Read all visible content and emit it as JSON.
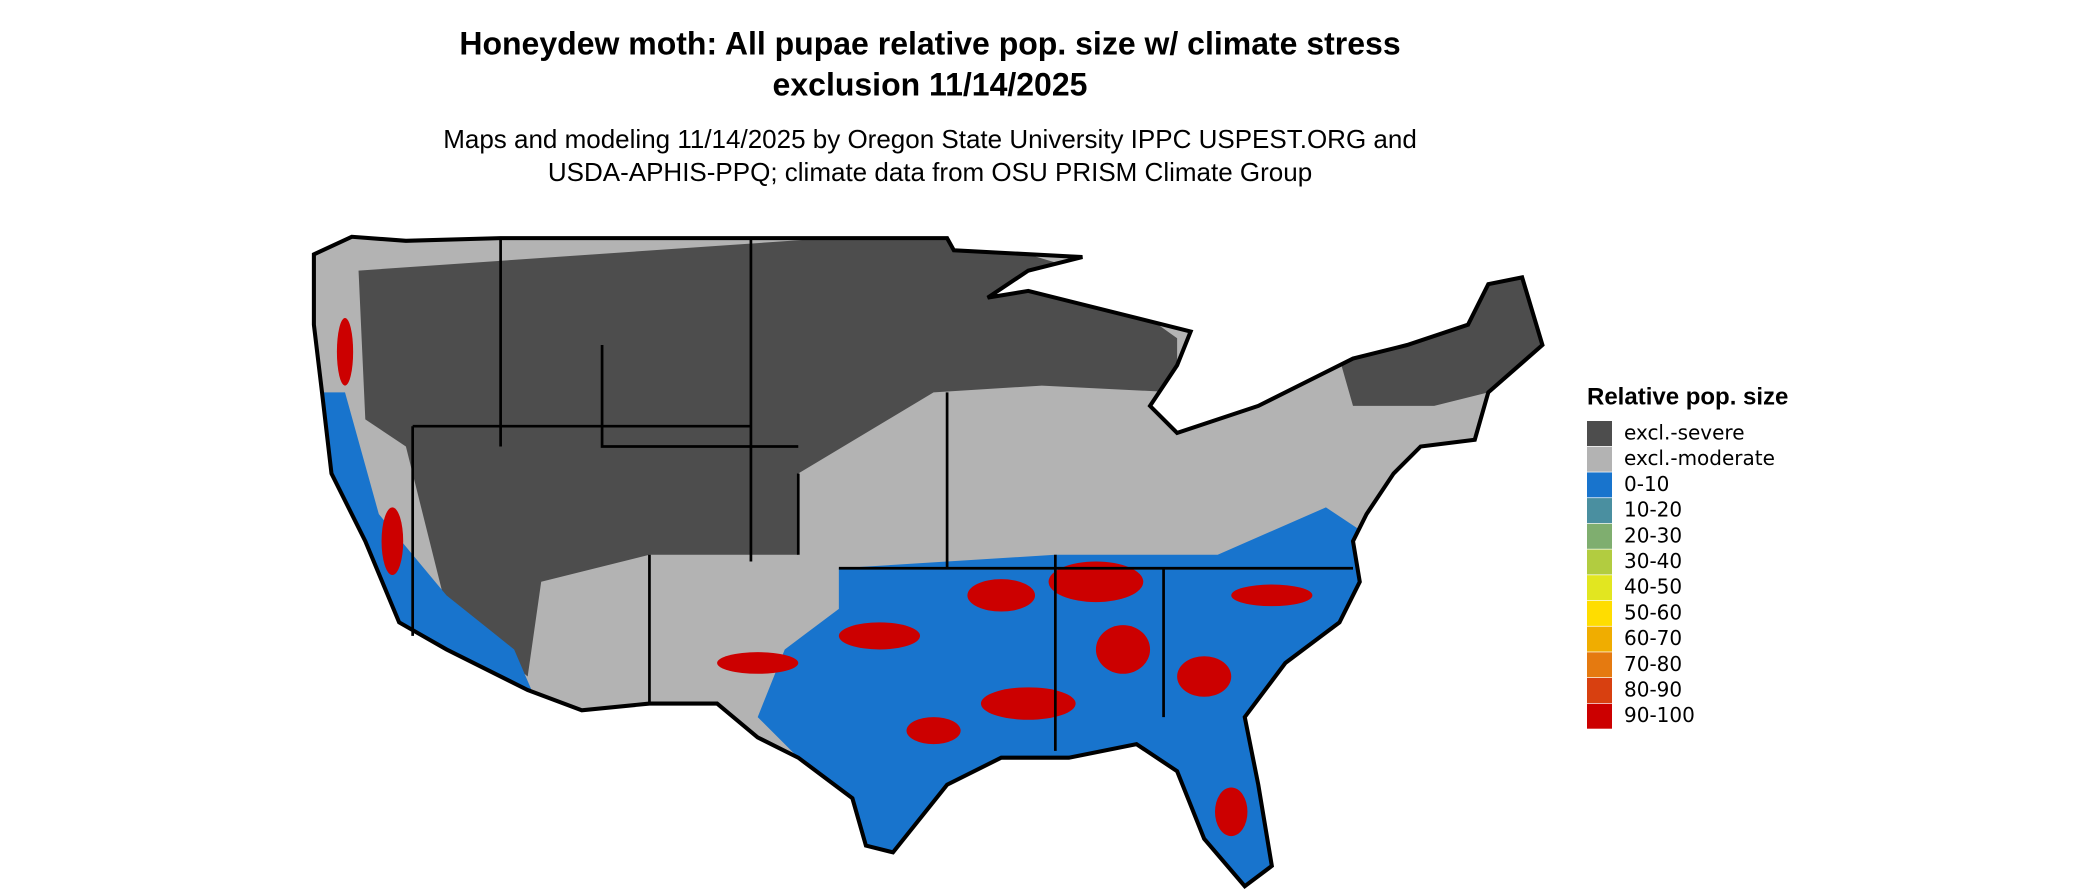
{
  "header": {
    "title": [
      "Honeydew moth: All pupae relative pop. size w/ climate stress",
      "exclusion 11/14/2025"
    ],
    "subtitle": [
      "Maps and modeling 11/14/2025 by Oregon State University IPPC USPEST.ORG and",
      "USDA-APHIS-PPQ; climate data from OSU PRISM Climate Group"
    ]
  },
  "legend": {
    "title": "Relative pop. size",
    "items": [
      {
        "label": "excl.-severe",
        "color": "#4d4d4d"
      },
      {
        "label": "excl.-moderate",
        "color": "#b3b3b3"
      },
      {
        "label": "0-10",
        "color": "#1874cd"
      },
      {
        "label": "10-20",
        "color": "#4a8fa0"
      },
      {
        "label": "20-30",
        "color": "#7fae6f"
      },
      {
        "label": "30-40",
        "color": "#b2cc40"
      },
      {
        "label": "40-50",
        "color": "#e2e620"
      },
      {
        "label": "50-60",
        "color": "#ffdd00"
      },
      {
        "label": "60-70",
        "color": "#f0ad00"
      },
      {
        "label": "70-80",
        "color": "#e57a10"
      },
      {
        "label": "80-90",
        "color": "#d84010"
      },
      {
        "label": "90-100",
        "color": "#cc0000"
      }
    ]
  }
}
